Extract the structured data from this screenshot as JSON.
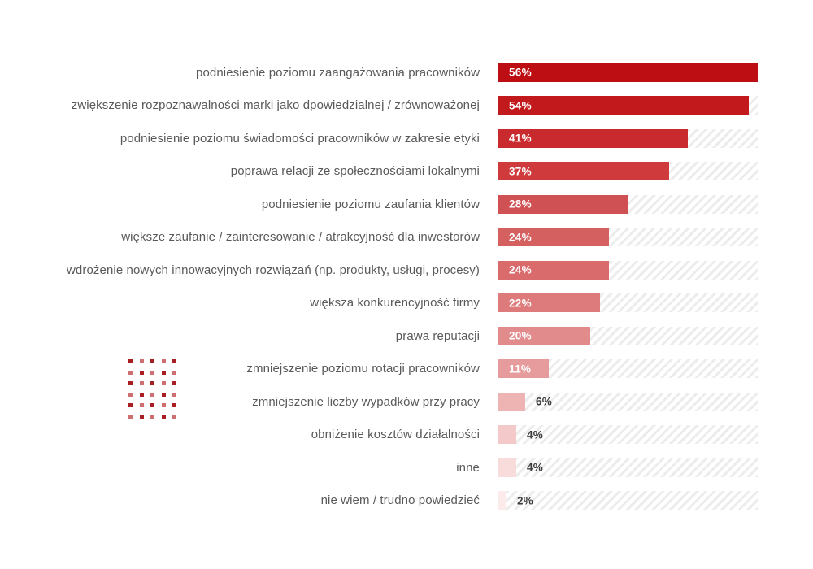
{
  "chart_data": {
    "type": "bar",
    "orientation": "horizontal",
    "title": "",
    "xlabel": "",
    "ylabel": "",
    "unit": "%",
    "scale_max": 56,
    "grid": false,
    "legend": "none",
    "track_style": "diagonal-hatch",
    "categories": [
      "podniesienie poziomu zaangażowania pracowników",
      "zwiększenie rozpoznawalności marki jako dpowiedzialnej / zrównoważonej",
      "podniesienie poziomu świadomości pracowników w zakresie etyki",
      "poprawa relacji ze społecznościami lokalnymi",
      "podniesienie poziomu zaufania klientów",
      "większe zaufanie / zainteresowanie / atrakcyjność dla inwestorów",
      "wdrożenie nowych innowacyjnych rozwiązań (np. produkty, usługi, procesy)",
      "większa konkurencyjność firmy",
      "prawa reputacji",
      "zmniejszenie poziomu rotacji pracowników",
      "zmniejszenie liczby wypadków przy pracy",
      "obniżenie kosztów działalności",
      "inne",
      "nie wiem / trudno powiedzieć"
    ],
    "values": [
      56,
      54,
      41,
      37,
      28,
      24,
      24,
      22,
      20,
      11,
      6,
      4,
      4,
      2
    ],
    "value_labels": [
      "56%",
      "54%",
      "41%",
      "37%",
      "28%",
      "24%",
      "24%",
      "22%",
      "20%",
      "11%",
      "6%",
      "4%",
      "4%",
      "2%"
    ],
    "bar_colors": [
      "#bd0f13",
      "#c2191d",
      "#c92a2d",
      "#cf3a3c",
      "#cf5153",
      "#d56060",
      "#d96b6c",
      "#dd7b7c",
      "#e18b8c",
      "#e69c9d",
      "#eeb4b4",
      "#f3c9c9",
      "#f8dbdb",
      "#fbebeb"
    ]
  },
  "style": {
    "background": "#ffffff",
    "label_text_color": "#58595b",
    "value_inside_color": "#ffffff",
    "value_outside_color": "#3e3e3e",
    "hatch_stripe_color": "#ececec"
  },
  "decoration": {
    "dot_grid": {
      "rows": 6,
      "cols": 5,
      "colors": [
        "#a81e22",
        "#ce6f72"
      ]
    }
  }
}
